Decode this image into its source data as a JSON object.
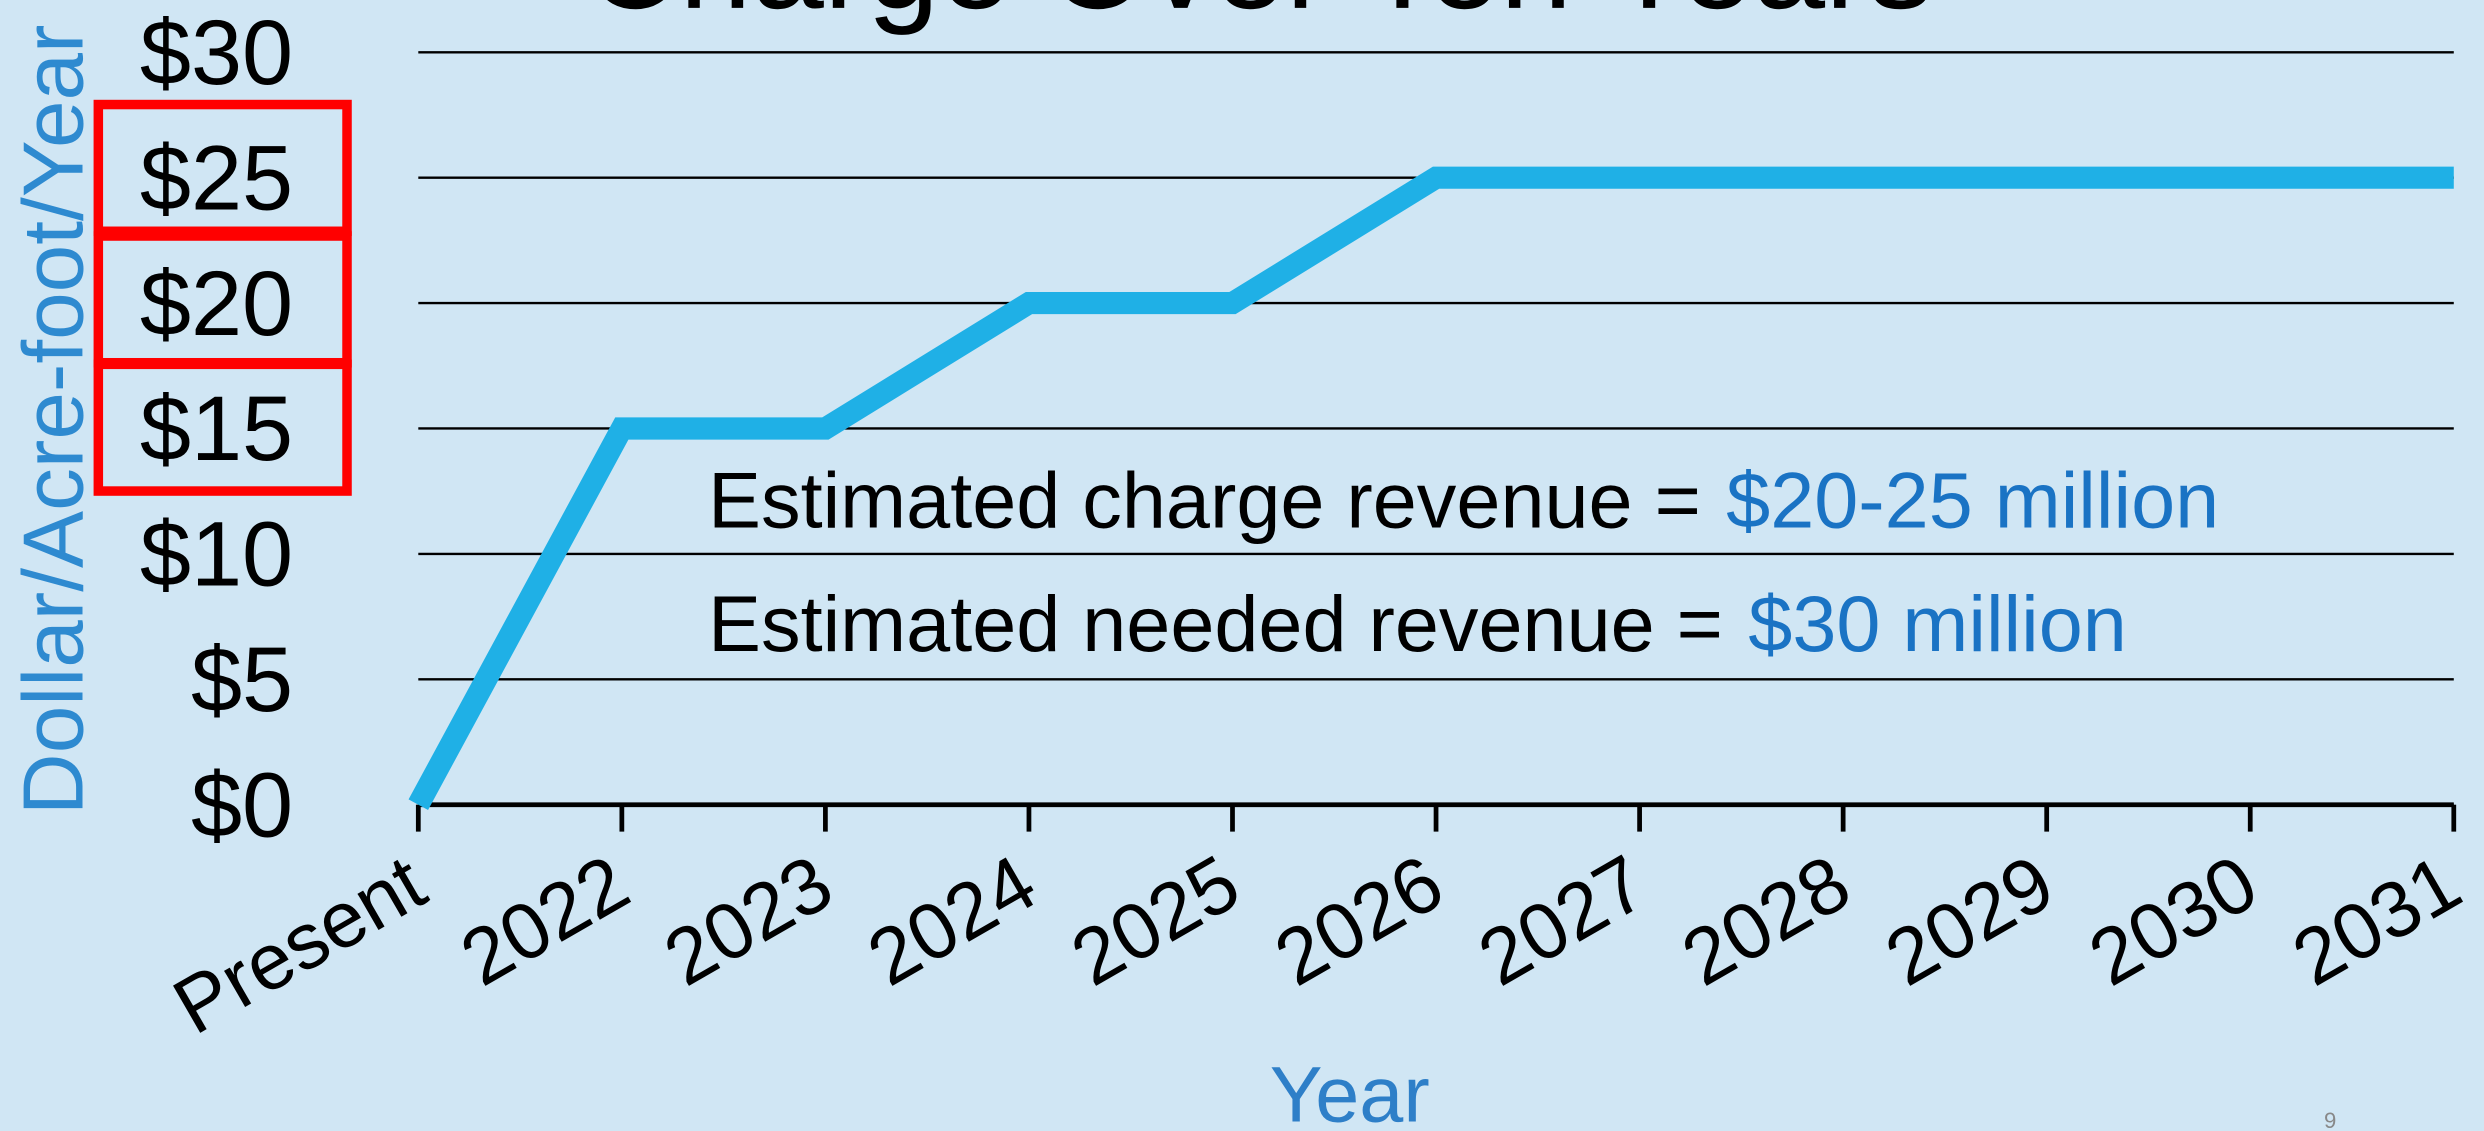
{
  "chart_data": {
    "type": "line",
    "title": "Charge Over Ten Years",
    "x_label": "Year",
    "y_label": "Dollar/Acre-foot/Year",
    "categories": [
      "Present",
      "2022",
      "2023",
      "2024",
      "2025",
      "2026",
      "2027",
      "2028",
      "2029",
      "2030",
      "2031"
    ],
    "series": [
      {
        "name": "Charge",
        "color": "#1fb0e6",
        "values": [
          0,
          15,
          15,
          20,
          20,
          25,
          25,
          25,
          25,
          25,
          25
        ]
      }
    ],
    "ylim": [
      0,
      30
    ],
    "yticks": [
      {
        "value": 0,
        "label": "$0"
      },
      {
        "value": 5,
        "label": "$5"
      },
      {
        "value": 10,
        "label": "$10"
      },
      {
        "value": 15,
        "label": "$15"
      },
      {
        "value": 20,
        "label": "$20"
      },
      {
        "value": 25,
        "label": "$25"
      },
      {
        "value": 30,
        "label": "$30"
      }
    ],
    "grid": true,
    "annotations": [
      {
        "text": "Estimated charge revenue =",
        "highlight": "$20-25 million"
      },
      {
        "text": "Estimated needed revenue =",
        "highlight": "$30 million"
      }
    ],
    "page_number": "9"
  }
}
